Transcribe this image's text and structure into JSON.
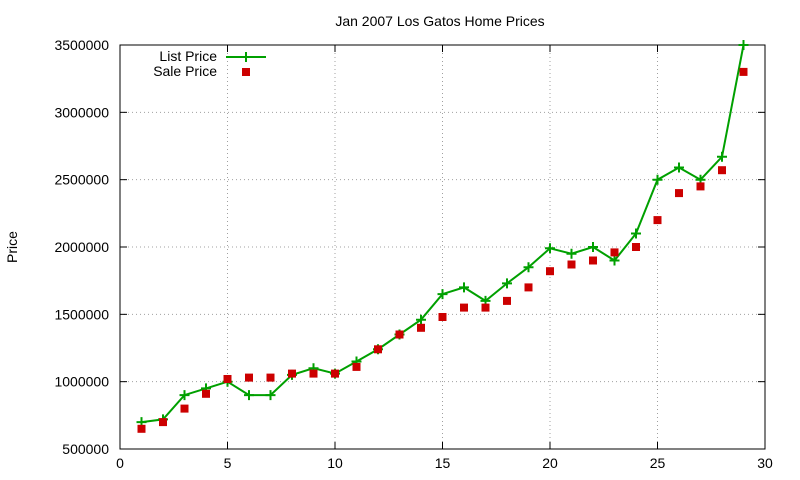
{
  "chart_data": {
    "type": "line",
    "title": "Jan 2007 Los Gatos Home Prices",
    "xlabel": "",
    "ylabel": "Price",
    "xlim": [
      0,
      30
    ],
    "ylim": [
      500000,
      3500000
    ],
    "xticks": [
      0,
      5,
      10,
      15,
      20,
      25,
      30
    ],
    "yticks": [
      500000,
      1000000,
      1500000,
      2000000,
      2500000,
      3000000,
      3500000
    ],
    "grid": true,
    "legend_position": "top-left",
    "x": [
      1,
      2,
      3,
      4,
      5,
      6,
      7,
      8,
      9,
      10,
      11,
      12,
      13,
      14,
      15,
      16,
      17,
      18,
      19,
      20,
      21,
      22,
      23,
      24,
      25,
      26,
      27,
      28,
      29
    ],
    "series": [
      {
        "name": "List Price",
        "style": "line+cross",
        "color": "#00a000",
        "values": [
          700000,
          720000,
          900000,
          950000,
          1000000,
          900000,
          900000,
          1050000,
          1100000,
          1060000,
          1150000,
          1240000,
          1350000,
          1460000,
          1650000,
          1700000,
          1600000,
          1730000,
          1850000,
          1990000,
          1950000,
          2000000,
          1900000,
          2100000,
          2500000,
          2590000,
          2500000,
          2670000,
          3500000
        ]
      },
      {
        "name": "Sale Price",
        "style": "square",
        "color": "#cc0000",
        "values": [
          650000,
          700000,
          800000,
          910000,
          1020000,
          1030000,
          1030000,
          1060000,
          1060000,
          1060000,
          1110000,
          1240000,
          1350000,
          1400000,
          1480000,
          1550000,
          1550000,
          1600000,
          1700000,
          1820000,
          1870000,
          1900000,
          1960000,
          2000000,
          2200000,
          2400000,
          2450000,
          2570000,
          3300000
        ]
      }
    ]
  }
}
